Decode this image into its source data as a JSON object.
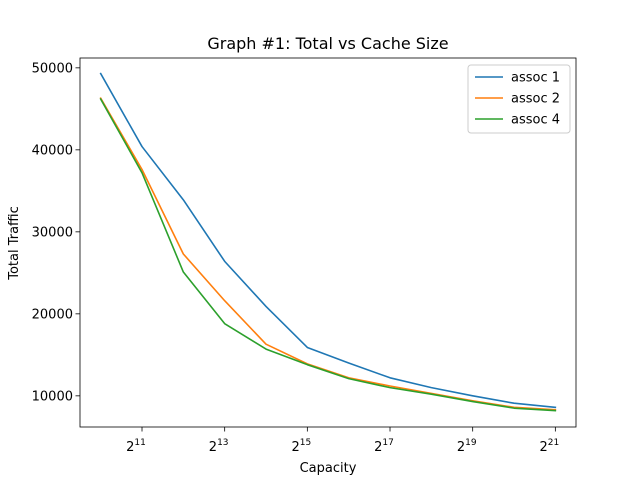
{
  "chart_data": {
    "type": "line",
    "title": "Graph #1: Total vs Cache Size",
    "xlabel": "Capacity",
    "ylabel": "Total Traffic",
    "x_scale": "log2",
    "x": [
      1024,
      2048,
      4096,
      8192,
      16384,
      32768,
      65536,
      131072,
      262144,
      524288,
      1048576,
      2097152
    ],
    "xlim": [
      724,
      2965000
    ],
    "ylim": [
      6200,
      51200
    ],
    "x_ticks": [
      {
        "value": 2048,
        "base": "2",
        "exp": "11"
      },
      {
        "value": 8192,
        "base": "2",
        "exp": "13"
      },
      {
        "value": 32768,
        "base": "2",
        "exp": "15"
      },
      {
        "value": 131072,
        "base": "2",
        "exp": "17"
      },
      {
        "value": 524288,
        "base": "2",
        "exp": "19"
      },
      {
        "value": 2097152,
        "base": "2",
        "exp": "21"
      }
    ],
    "y_ticks": [
      {
        "value": 10000,
        "label": "10000"
      },
      {
        "value": 20000,
        "label": "20000"
      },
      {
        "value": 30000,
        "label": "30000"
      },
      {
        "value": 40000,
        "label": "40000"
      },
      {
        "value": 50000,
        "label": "50000"
      }
    ],
    "grid": false,
    "legend_position": "top-right",
    "series": [
      {
        "name": "assoc 1",
        "color": "#1f77b4",
        "values": [
          49300,
          40400,
          33900,
          26400,
          20900,
          15900,
          14000,
          12200,
          11000,
          10000,
          9100,
          8600
        ]
      },
      {
        "name": "assoc 2",
        "color": "#ff7f0e",
        "values": [
          46300,
          37600,
          27300,
          21600,
          16300,
          13900,
          12200,
          11200,
          10300,
          9400,
          8600,
          8300
        ]
      },
      {
        "name": "assoc 4",
        "color": "#2ca02c",
        "values": [
          46200,
          37200,
          25100,
          18800,
          15700,
          13800,
          12100,
          11000,
          10200,
          9300,
          8500,
          8200
        ]
      }
    ]
  }
}
